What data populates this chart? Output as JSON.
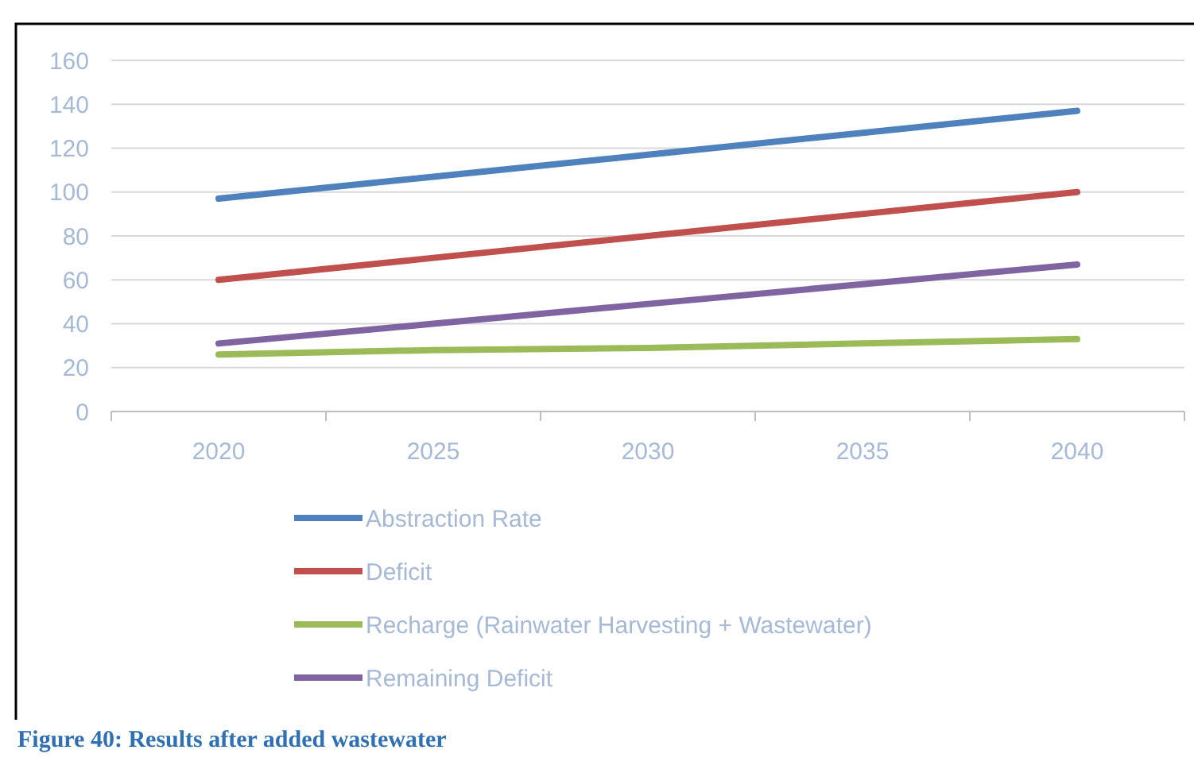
{
  "chart_data": {
    "type": "line",
    "categories": [
      "2020",
      "2025",
      "2030",
      "2035",
      "2040"
    ],
    "series": [
      {
        "name": "Abstraction Rate",
        "color": "#4f81bd",
        "values": [
          97,
          107,
          117,
          127,
          137
        ]
      },
      {
        "name": "Deficit",
        "color": "#c0504d",
        "values": [
          60,
          70,
          80,
          90,
          100
        ]
      },
      {
        "name": "Recharge (Rainwater Harvesting + Wastewater)",
        "color": "#9bbb59",
        "values": [
          26,
          28,
          29,
          31,
          33
        ]
      },
      {
        "name": "Remaining Deficit",
        "color": "#8064a2",
        "values": [
          31,
          40,
          49,
          58,
          67
        ]
      }
    ],
    "ylim": [
      0,
      160
    ],
    "yticks": [
      0,
      20,
      40,
      60,
      80,
      100,
      120,
      140,
      160
    ],
    "grid": "y",
    "legend": "bottom",
    "marker": "none",
    "line_style": "solid",
    "annotations": [
      "Figure 40: Results after added wastewater"
    ]
  }
}
